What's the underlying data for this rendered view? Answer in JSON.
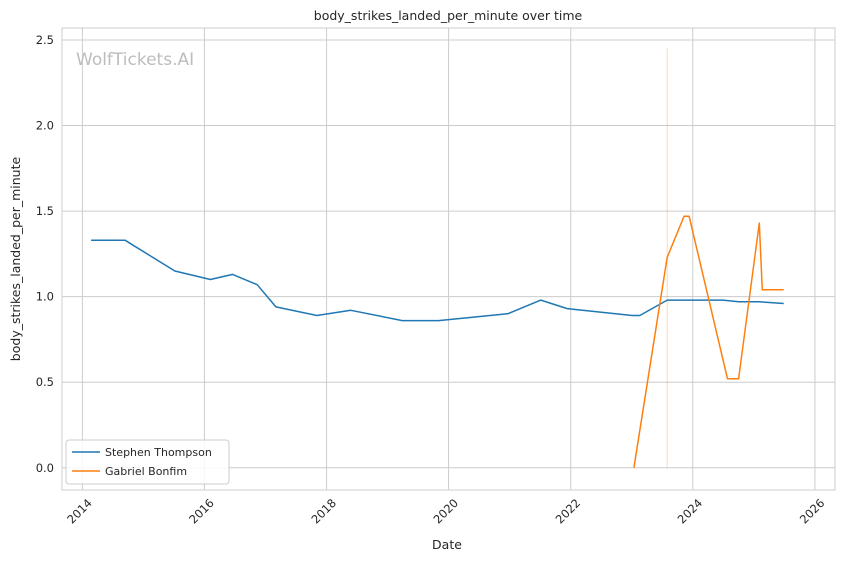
{
  "chart_data": {
    "type": "line",
    "title": "body_strikes_landed_per_minute over time",
    "xlabel": "Date",
    "ylabel": "body_strikes_landed_per_minute",
    "watermark": "WolfTickets.AI",
    "xlim": [
      "2013-09-01",
      "2026-05-01"
    ],
    "ylim": [
      -0.13,
      2.57
    ],
    "x_ticks": [
      "2014",
      "2016",
      "2018",
      "2020",
      "2022",
      "2024",
      "2026"
    ],
    "y_ticks": [
      "0.0",
      "0.5",
      "1.0",
      "1.5",
      "2.0",
      "2.5"
    ],
    "grid": true,
    "legend_position": "bottom-left",
    "vertical_marker": {
      "x": "2023-08-01",
      "y_range": [
        0,
        2.45
      ],
      "color": "#ff7f0e"
    },
    "series": [
      {
        "name": "Stephen Thompson",
        "color": "#1f77b4",
        "points": [
          [
            "2014-02-22",
            1.33
          ],
          [
            "2014-09-13",
            1.33
          ],
          [
            "2015-07-08",
            1.15
          ],
          [
            "2016-02-06",
            1.1
          ],
          [
            "2016-06-18",
            1.13
          ],
          [
            "2016-11-12",
            1.07
          ],
          [
            "2017-03-04",
            0.94
          ],
          [
            "2017-11-04",
            0.89
          ],
          [
            "2018-05-26",
            0.92
          ],
          [
            "2019-03-30",
            0.86
          ],
          [
            "2019-11-02",
            0.86
          ],
          [
            "2020-12-19",
            0.9
          ],
          [
            "2021-07-06",
            0.98
          ],
          [
            "2021-12-11",
            0.93
          ],
          [
            "2023-01-03",
            0.89
          ],
          [
            "2023-02-18",
            0.89
          ],
          [
            "2023-08-01",
            0.98
          ],
          [
            "2024-06-29",
            0.98
          ],
          [
            "2024-10-01",
            0.97
          ],
          [
            "2025-02-02",
            0.97
          ],
          [
            "2025-06-28",
            0.96
          ]
        ]
      },
      {
        "name": "Gabriel Bonfim",
        "color": "#ff7f0e",
        "points": [
          [
            "2023-01-14",
            0.0
          ],
          [
            "2023-08-01",
            1.23
          ],
          [
            "2023-11-10",
            1.47
          ],
          [
            "2023-12-10",
            1.47
          ],
          [
            "2024-07-27",
            0.52
          ],
          [
            "2024-10-01",
            0.52
          ],
          [
            "2025-02-02",
            1.43
          ],
          [
            "2025-02-20",
            1.04
          ],
          [
            "2025-06-28",
            1.04
          ]
        ]
      }
    ]
  }
}
